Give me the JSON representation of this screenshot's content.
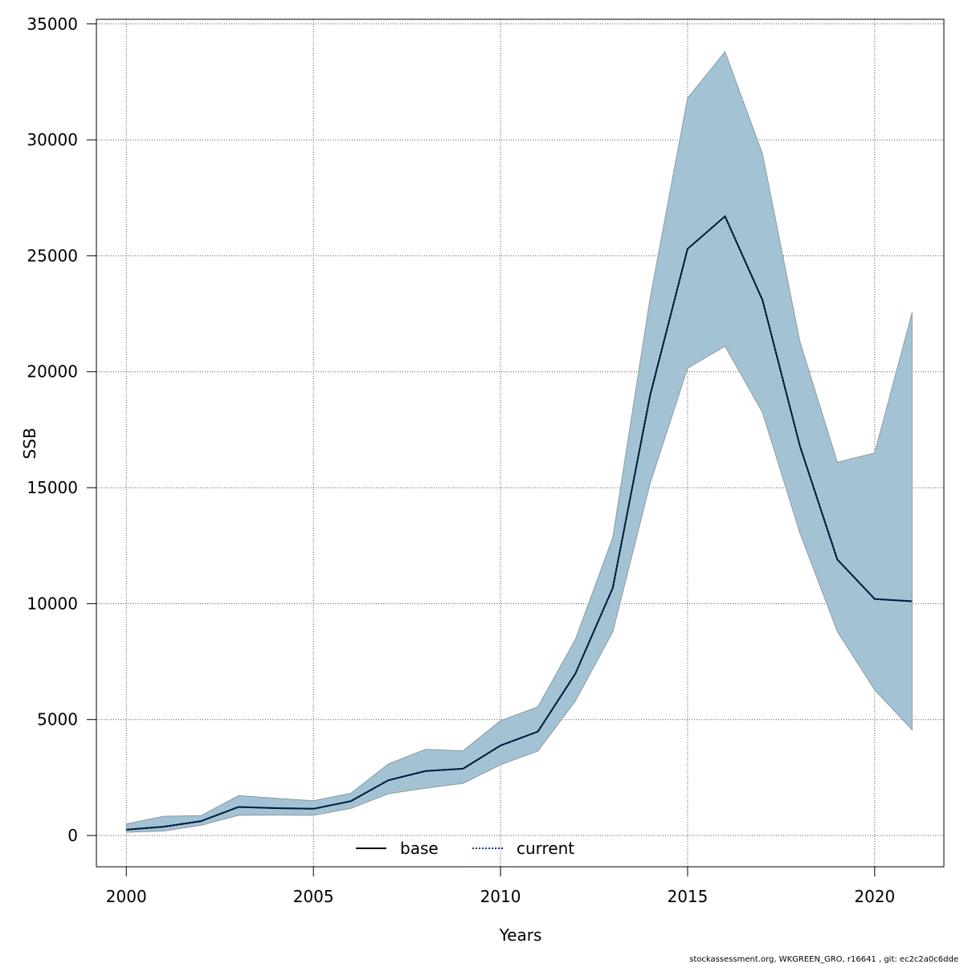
{
  "chart_data": {
    "type": "line",
    "title": "",
    "xlabel": "Years",
    "ylabel": "SSB",
    "xlim": [
      1999.2,
      2021.85
    ],
    "ylim": [
      -1350,
      35200
    ],
    "x_ticks": [
      2000,
      2005,
      2010,
      2015,
      2020
    ],
    "y_ticks": [
      0,
      5000,
      10000,
      15000,
      20000,
      25000,
      30000,
      35000
    ],
    "grid": true,
    "legend_position": "bottom-center",
    "x": [
      2000,
      2001,
      2002,
      2003,
      2004,
      2005,
      2006,
      2007,
      2008,
      2009,
      2010,
      2011,
      2012,
      2013,
      2014,
      2015,
      2016,
      2017,
      2018,
      2019,
      2020,
      2021
    ],
    "series": [
      {
        "name": "base",
        "style": "solid",
        "color": "#000000",
        "values": [
          250,
          380,
          620,
          1230,
          1180,
          1150,
          1480,
          2380,
          2780,
          2880,
          3880,
          4480,
          6980,
          10680,
          19000,
          25300,
          26700,
          23100,
          16800,
          11900,
          10200,
          10100
        ]
      },
      {
        "name": "current",
        "style": "dotted",
        "color": "#003f7f",
        "values": [
          250,
          380,
          620,
          1230,
          1180,
          1150,
          1480,
          2380,
          2780,
          2880,
          3880,
          4480,
          6980,
          10680,
          19000,
          25300,
          26700,
          23100,
          16800,
          11900,
          10200,
          10100
        ]
      }
    ],
    "confidence_band": {
      "upper": [
        500,
        830,
        860,
        1720,
        1600,
        1500,
        1820,
        3080,
        3720,
        3650,
        4950,
        5550,
        8450,
        12850,
        23200,
        31800,
        33800,
        29400,
        21300,
        16100,
        16500,
        22550
      ],
      "lower": [
        140,
        190,
        440,
        870,
        880,
        870,
        1170,
        1800,
        2040,
        2250,
        3050,
        3640,
        5800,
        8780,
        15200,
        20150,
        21100,
        18250,
        13050,
        8800,
        6280,
        4560
      ],
      "fill_color": "#a3c3d5",
      "stroke_color": "#8a9aa3"
    },
    "footnote": "stockassessment.org, WKGREEN_GRO, r16641 , git: ec2c2a0c6dde"
  }
}
